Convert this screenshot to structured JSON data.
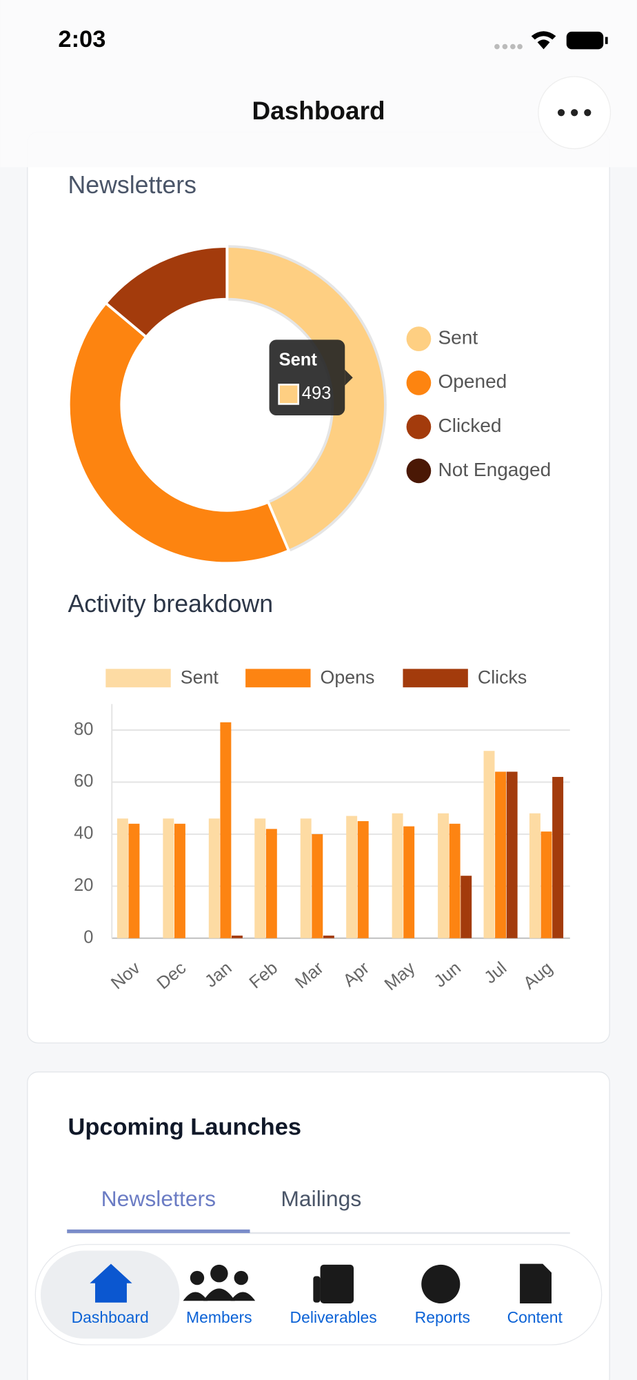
{
  "status": {
    "time": "2:03"
  },
  "header": {
    "title": "Dashboard"
  },
  "chart_data": [
    {
      "type": "donut",
      "title": "Newsletters",
      "labels": [
        "Sent",
        "Opened",
        "Clicked",
        "Not Engaged"
      ],
      "values": [
        493,
        480,
        157,
        0
      ],
      "colors": [
        "#fecf82",
        "#fd8410",
        "#a33b0c",
        "#4a1805"
      ],
      "tooltip_index": 0
    },
    {
      "type": "bar",
      "title": "Activity breakdown",
      "categories": [
        "Nov",
        "Dec",
        "Jan",
        "Feb",
        "Mar",
        "Apr",
        "May",
        "Jun",
        "Jul",
        "Aug"
      ],
      "series": [
        {
          "name": "Sent",
          "color": "#fddba3",
          "values": [
            46,
            46,
            46,
            46,
            46,
            47,
            48,
            48,
            72,
            48
          ]
        },
        {
          "name": "Opens",
          "color": "#fd8412",
          "values": [
            44,
            44,
            83,
            42,
            40,
            45,
            43,
            44,
            64,
            41
          ]
        },
        {
          "name": "Clicks",
          "color": "#a33b0c",
          "values": [
            0,
            0,
            1,
            0,
            1,
            0,
            0,
            24,
            64,
            62
          ]
        }
      ],
      "ylim": [
        0,
        90
      ],
      "yticks": [
        0,
        20,
        40,
        60,
        80
      ],
      "grid": true
    }
  ],
  "launches": {
    "title": "Upcoming Launches",
    "tabs": [
      "Newsletters",
      "Mailings"
    ]
  },
  "nav": [
    "Dashboard",
    "Members",
    "Deliverables",
    "Reports",
    "Content"
  ]
}
